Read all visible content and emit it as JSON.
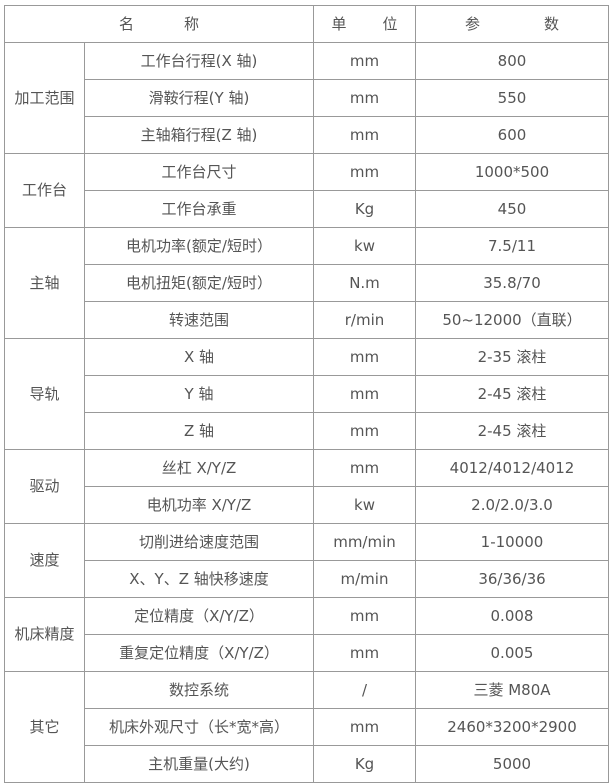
{
  "header": {
    "name": [
      "名",
      "称"
    ],
    "unit": [
      "单",
      "位"
    ],
    "value": [
      "参",
      "数"
    ]
  },
  "groups": [
    {
      "label": "加工范围",
      "rows": [
        {
          "name": "工作台行程(X 轴)",
          "unit": "mm",
          "value": "800"
        },
        {
          "name": "滑鞍行程(Y 轴)",
          "unit": "mm",
          "value": "550"
        },
        {
          "name": "主轴箱行程(Z 轴)",
          "unit": "mm",
          "value": "600"
        }
      ]
    },
    {
      "label": "工作台",
      "rows": [
        {
          "name": "工作台尺寸",
          "unit": "mm",
          "value": "1000*500"
        },
        {
          "name": "工作台承重",
          "unit": "Kg",
          "value": "450"
        }
      ]
    },
    {
      "label": "主轴",
      "rows": [
        {
          "name": "电机功率(额定/短时）",
          "unit": "kw",
          "value": "7.5/11"
        },
        {
          "name": "电机扭矩(额定/短时）",
          "unit": "N.m",
          "value": "35.8/70"
        },
        {
          "name": "转速范围",
          "unit": "r/min",
          "value": "50~12000（直联）"
        }
      ]
    },
    {
      "label": "导轨",
      "rows": [
        {
          "name": "X 轴",
          "unit": "mm",
          "value": "2-35 滚柱"
        },
        {
          "name": "Y 轴",
          "unit": "mm",
          "value": "2-45 滚柱"
        },
        {
          "name": "Z 轴",
          "unit": "mm",
          "value": "2-45 滚柱"
        }
      ]
    },
    {
      "label": "驱动",
      "rows": [
        {
          "name": "丝杠 X/Y/Z",
          "unit": "mm",
          "value": "4012/4012/4012"
        },
        {
          "name": "电机功率 X/Y/Z",
          "unit": "kw",
          "value": "2.0/2.0/3.0"
        }
      ]
    },
    {
      "label": "速度",
      "rows": [
        {
          "name": "切削进给速度范围",
          "unit": "mm/min",
          "value": "1-10000"
        },
        {
          "name": "X、Y、Z 轴快移速度",
          "unit": "m/min",
          "value": "36/36/36"
        }
      ]
    },
    {
      "label": "机床精度",
      "rows": [
        {
          "name": "定位精度（X/Y/Z）",
          "unit": "mm",
          "value": "0.008"
        },
        {
          "name": "重复定位精度（X/Y/Z）",
          "unit": "mm",
          "value": "0.005"
        }
      ]
    },
    {
      "label": "其它",
      "rows": [
        {
          "name": "数控系统",
          "unit": "/",
          "value": "三菱 M80A"
        },
        {
          "name": "机床外观尺寸（长*宽*高）",
          "unit": "mm",
          "value": "2460*3200*2900"
        },
        {
          "name": "主机重量(大约)",
          "unit": "Kg",
          "value": "5000"
        }
      ]
    }
  ]
}
